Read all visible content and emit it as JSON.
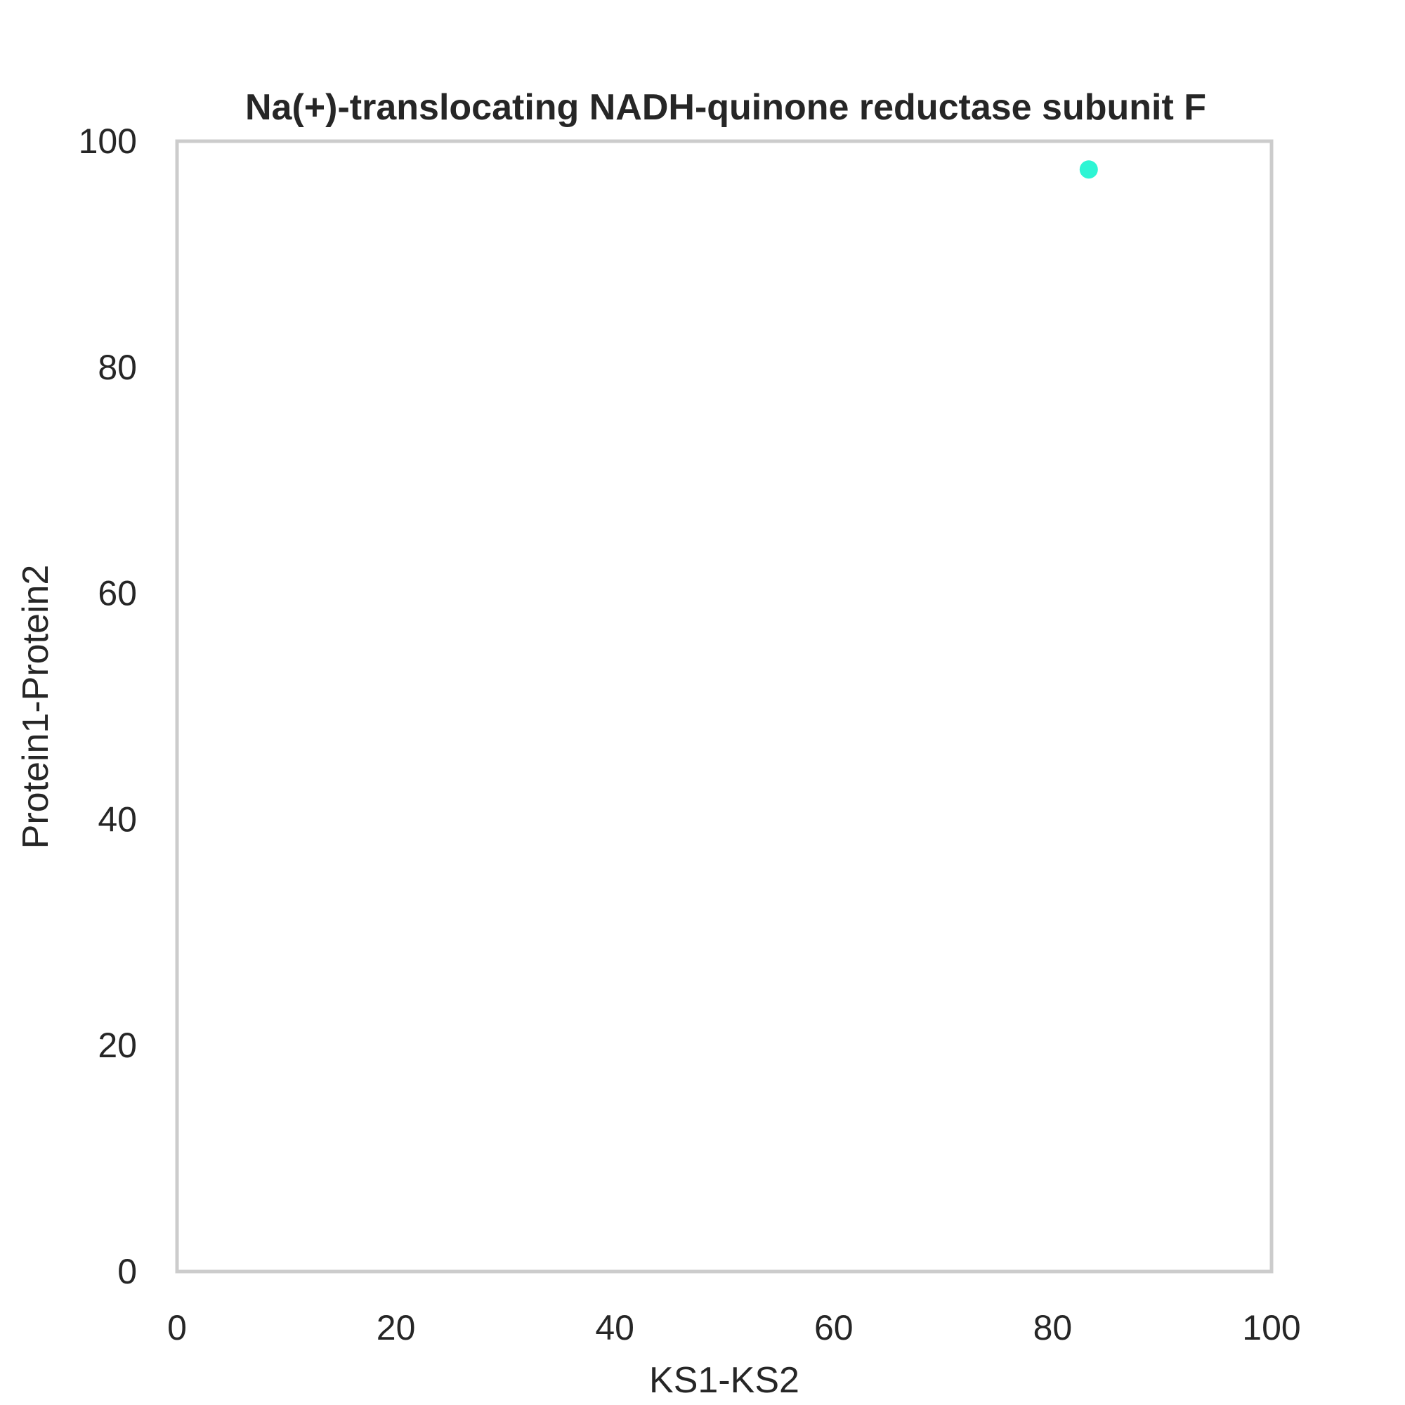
{
  "chart_data": {
    "type": "scatter",
    "title": "Na(+)-translocating NADH-quinone reductase subunit F",
    "xlabel": "KS1-KS2",
    "ylabel": "Protein1-Protein2",
    "xlim": [
      0,
      100
    ],
    "ylim": [
      0,
      100
    ],
    "xticks": [
      "0",
      "20",
      "40",
      "60",
      "80",
      "100"
    ],
    "yticks": [
      "0",
      "20",
      "40",
      "60",
      "80",
      "100"
    ],
    "grid": false,
    "points": [
      {
        "x": 83.3,
        "y": 97.5,
        "color": "#2ef5d4"
      }
    ]
  },
  "colors": {
    "frame": "#cccccc",
    "text": "#262626",
    "point": "#2ef5d4"
  }
}
